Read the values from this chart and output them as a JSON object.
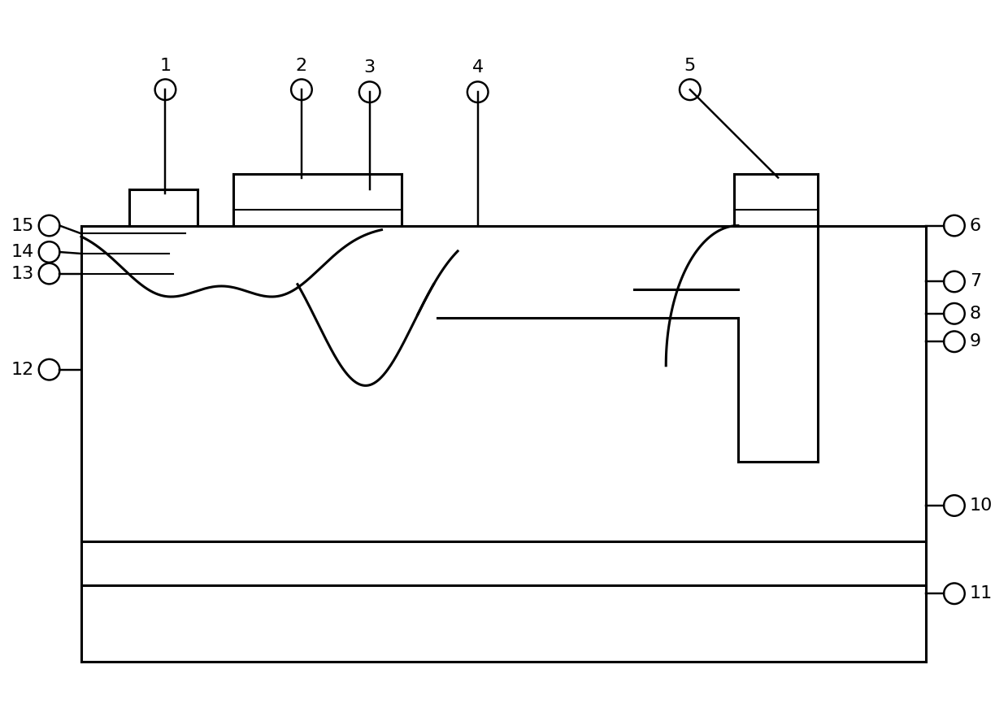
{
  "fig_width": 12.4,
  "fig_height": 8.71,
  "bg_color": "#ffffff",
  "line_color": "#000000",
  "lw": 2.2,
  "lw_thin": 1.5,
  "fs": 16
}
